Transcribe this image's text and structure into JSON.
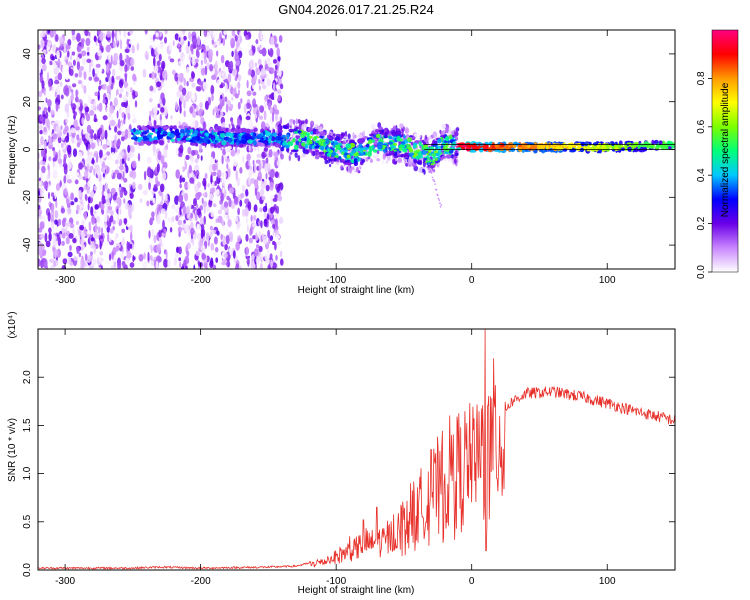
{
  "figure": {
    "title": "GN04.2026.017.21.25.R24"
  },
  "colors": {
    "snr_line": "#e8302a",
    "frame": "#000000",
    "background": "#ffffff"
  },
  "chart_data": [
    {
      "type": "heatmap",
      "xlabel": "Height of straight line (km)",
      "ylabel": "Frequency (Hz)",
      "xlim": [
        -320,
        150
      ],
      "ylim": [
        -50,
        50
      ],
      "x_ticks": [
        -300,
        -200,
        -100,
        0,
        100
      ],
      "y_ticks": [
        -40,
        -20,
        0,
        20,
        40
      ],
      "colorbar": {
        "label": "Normalized spectral amplitude",
        "range": [
          0.0,
          1.0
        ],
        "ticks": [
          "0.0",
          "0.2",
          "0.4",
          "0.6",
          "0.8"
        ],
        "colormap": [
          "#ffffff",
          "#c986ff",
          "#6a00e8",
          "#0000ff",
          "#00c8ff",
          "#00ff7a",
          "#7cff00",
          "#ffff00",
          "#ff9b00",
          "#ff0000",
          "#ff0080"
        ]
      },
      "signal_track": [
        {
          "x": -245,
          "f": 6
        },
        {
          "x": -215,
          "f": 6
        },
        {
          "x": -190,
          "f": 5
        },
        {
          "x": -150,
          "f": 5
        },
        {
          "x": -120,
          "f": 4
        },
        {
          "x": -100,
          "f": 0
        },
        {
          "x": -85,
          "f": -2
        },
        {
          "x": -70,
          "f": 3
        },
        {
          "x": -50,
          "f": 2
        },
        {
          "x": -30,
          "f": -3
        },
        {
          "x": -20,
          "f": 2
        },
        {
          "x": 0,
          "f": 1
        },
        {
          "x": 50,
          "f": 1
        },
        {
          "x": 100,
          "f": 1
        },
        {
          "x": 150,
          "f": 2
        }
      ]
    },
    {
      "type": "line",
      "xlabel": "Height of straight line (km)",
      "ylabel": "SNR (10 * v/v)",
      "y_multiplier": "(x10⁴)",
      "xlim": [
        -320,
        150
      ],
      "ylim": [
        0,
        2.5
      ],
      "x_ticks": [
        -300,
        -200,
        -100,
        0,
        100
      ],
      "y_ticks": [
        "0.0",
        "0.5",
        "1.0",
        "1.5",
        "2.0"
      ],
      "envelope": [
        {
          "x": -320,
          "y": 0.02
        },
        {
          "x": -250,
          "y": 0.02
        },
        {
          "x": -230,
          "y": 0.03
        },
        {
          "x": -200,
          "y": 0.02
        },
        {
          "x": -150,
          "y": 0.03
        },
        {
          "x": -130,
          "y": 0.04
        },
        {
          "x": -110,
          "y": 0.1
        },
        {
          "x": -95,
          "y": 0.2
        },
        {
          "x": -80,
          "y": 0.3
        },
        {
          "x": -65,
          "y": 0.35
        },
        {
          "x": -50,
          "y": 0.55
        },
        {
          "x": -40,
          "y": 0.7
        },
        {
          "x": -30,
          "y": 0.9
        },
        {
          "x": -20,
          "y": 1.05
        },
        {
          "x": -10,
          "y": 1.2
        },
        {
          "x": 0,
          "y": 1.3
        },
        {
          "x": 10,
          "y": 1.45
        },
        {
          "x": 20,
          "y": 1.6
        },
        {
          "x": 30,
          "y": 1.75
        },
        {
          "x": 40,
          "y": 1.83
        },
        {
          "x": 60,
          "y": 1.85
        },
        {
          "x": 80,
          "y": 1.8
        },
        {
          "x": 100,
          "y": 1.73
        },
        {
          "x": 120,
          "y": 1.65
        },
        {
          "x": 150,
          "y": 1.55
        }
      ],
      "spikes": [
        {
          "x": 10,
          "y": 2.5
        },
        {
          "x": 10.5,
          "y": 0.2
        },
        {
          "x": -15,
          "y": 1.4
        },
        {
          "x": -20,
          "y": 1.0
        },
        {
          "x": -30,
          "y": 1.25
        },
        {
          "x": -45,
          "y": 0.9
        },
        {
          "x": -70,
          "y": 0.65
        },
        {
          "x": -80,
          "y": 0.52
        },
        {
          "x": -90,
          "y": 0.35
        }
      ]
    }
  ]
}
